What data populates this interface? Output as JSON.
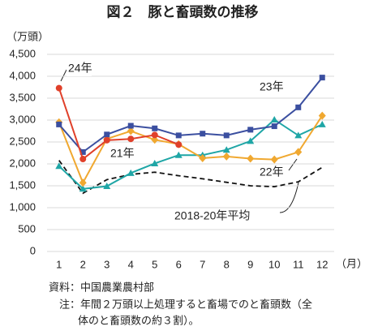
{
  "chart_data": {
    "type": "line",
    "title": "図２　豚と畜頭数の推移",
    "y_unit": "（万頭）",
    "x_unit": "（月）",
    "categories": [
      "1",
      "2",
      "3",
      "4",
      "5",
      "6",
      "7",
      "8",
      "9",
      "10",
      "11",
      "12"
    ],
    "ylim": [
      0,
      4500
    ],
    "yticks": [
      0,
      500,
      {
        "value": 1000,
        "label": "1,000"
      },
      {
        "value": 1500,
        "label": "1,500"
      },
      {
        "value": 2000,
        "label": "2,000"
      },
      {
        "value": 2500,
        "label": "2,500"
      },
      {
        "value": 3000,
        "label": "3,000"
      },
      {
        "value": 3500,
        "label": "3,500"
      },
      {
        "value": 4000,
        "label": "4,000"
      },
      {
        "value": 4500,
        "label": "4,500"
      }
    ],
    "grid": true,
    "series": [
      {
        "name": "2018-20年平均",
        "color": "#111111",
        "dash": true,
        "marker": "none",
        "values": [
          2080,
          1330,
          1640,
          1760,
          1810,
          1730,
          1660,
          1580,
          1500,
          1480,
          1590,
          1920
        ]
      },
      {
        "name": "21年",
        "color": "#1fa6a6",
        "marker": "triangle",
        "values": [
          1950,
          1430,
          1490,
          1790,
          2010,
          2200,
          2200,
          2320,
          2520,
          3010,
          2650,
          2900
        ]
      },
      {
        "name": "22年",
        "color": "#f0a830",
        "marker": "diamond",
        "values": [
          2950,
          1570,
          2570,
          2750,
          2550,
          2450,
          2130,
          2170,
          2120,
          2100,
          2270,
          3100
        ]
      },
      {
        "name": "23年",
        "color": "#3b4fa0",
        "marker": "square",
        "values": [
          2900,
          2270,
          2670,
          2870,
          2810,
          2650,
          2690,
          2650,
          2780,
          2860,
          3290,
          3970
        ]
      },
      {
        "name": "24年",
        "color": "#e0402a",
        "marker": "circle",
        "values": [
          3730,
          2110,
          2540,
          2570,
          2660,
          2440,
          null,
          null,
          null,
          null,
          null,
          null
        ]
      }
    ],
    "source": "資料：中国農業農村部",
    "note": [
      "注：年間２万頭以上処理すると畜場でのと畜頭数（全",
      "体のと畜頭数の約３割）。"
    ]
  }
}
